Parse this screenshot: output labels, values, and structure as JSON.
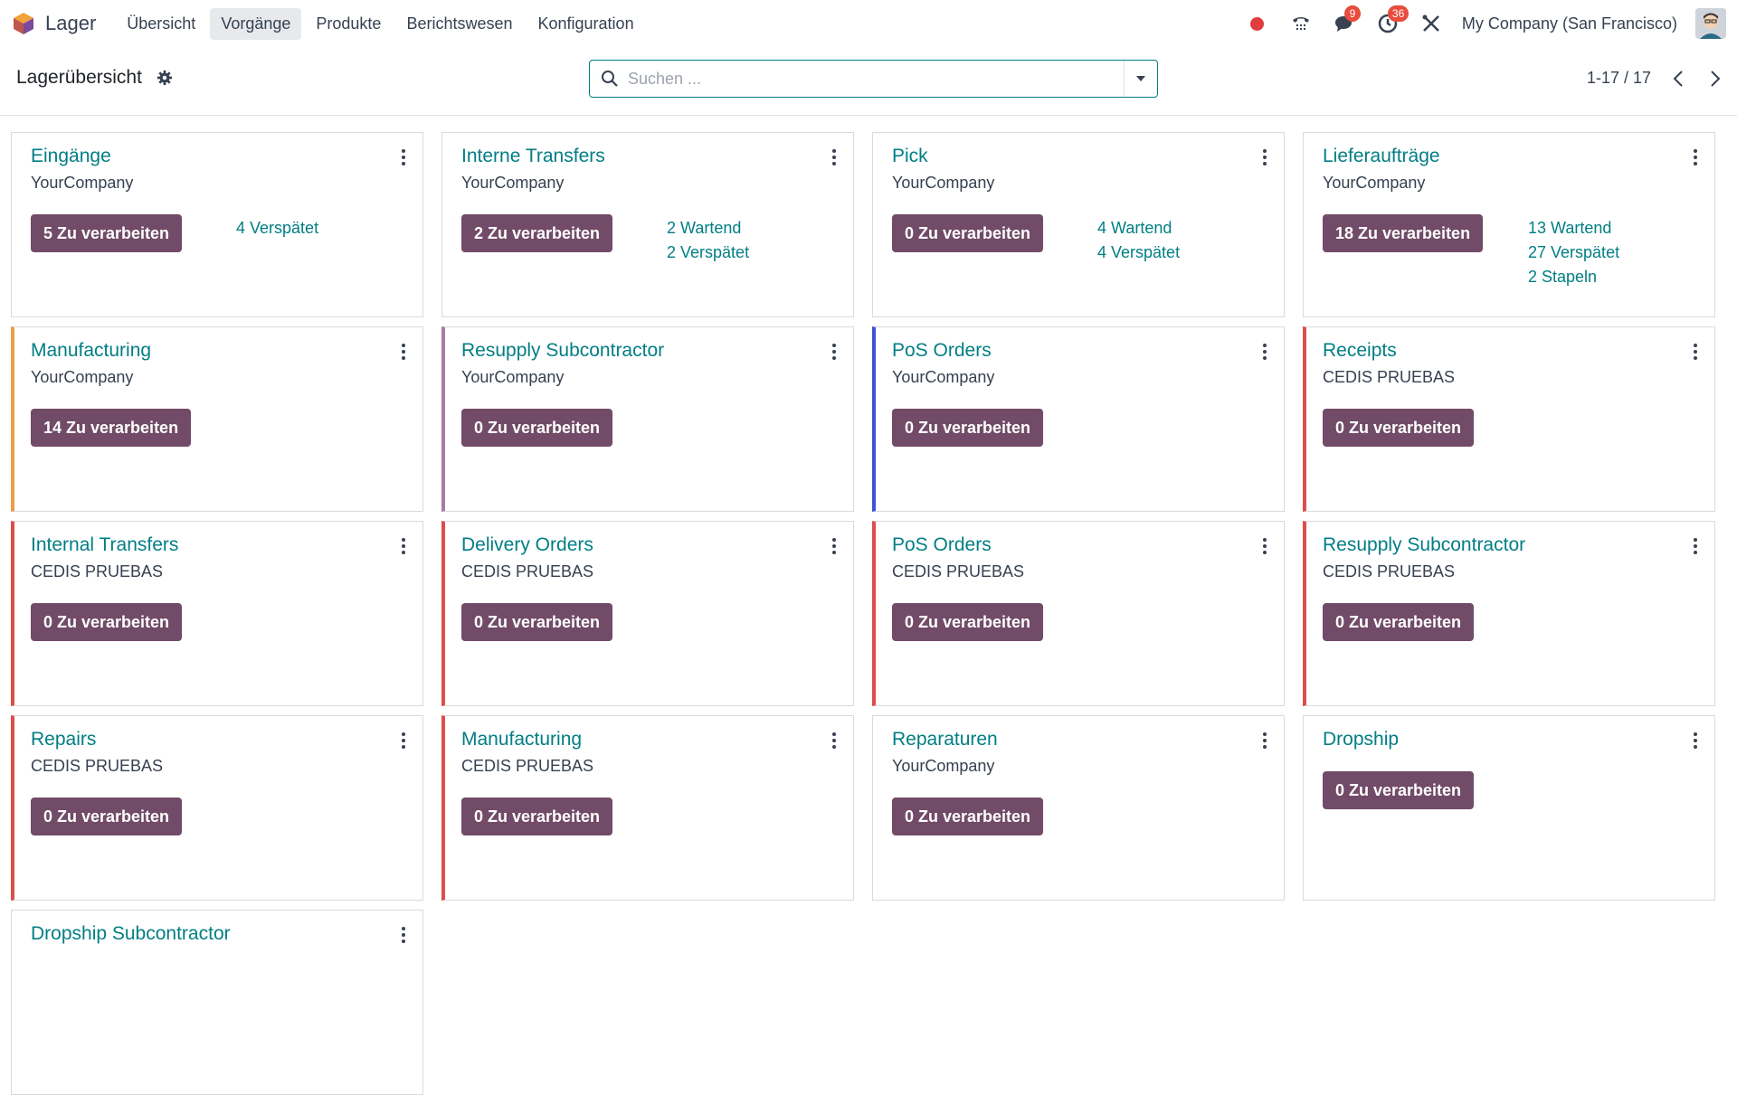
{
  "navbar": {
    "app_name": "Lager",
    "menu": [
      "Übersicht",
      "Vorgänge",
      "Produkte",
      "Berichtswesen",
      "Konfiguration"
    ],
    "active_menu": "Vorgänge",
    "messages_badge": "9",
    "activities_badge": "36",
    "company": "My Company (San Francisco)"
  },
  "control": {
    "title": "Lagerübersicht",
    "search_placeholder": "Suchen ...",
    "pager": "1-17 / 17"
  },
  "colors": {
    "primary": "#714b67",
    "link": "#017e84",
    "orange": "#e8a04c",
    "purple": "#a77ca5",
    "blue": "#3f51d6",
    "red": "#e04c4c"
  },
  "cards": [
    {
      "title": "Eingänge",
      "subtitle": "YourCompany",
      "button": "5 Zu verarbeiten",
      "stats": [
        "4 Verspätet"
      ],
      "accent": ""
    },
    {
      "title": "Interne Transfers",
      "subtitle": "YourCompany",
      "button": "2 Zu verarbeiten",
      "stats": [
        "2 Wartend",
        "2 Verspätet"
      ],
      "accent": ""
    },
    {
      "title": "Pick",
      "subtitle": "YourCompany",
      "button": "0 Zu verarbeiten",
      "stats": [
        "4 Wartend",
        "4 Verspätet"
      ],
      "accent": ""
    },
    {
      "title": "Lieferaufträge",
      "subtitle": "YourCompany",
      "button": "18 Zu verarbeiten",
      "stats": [
        "13 Wartend",
        "27 Verspätet",
        "2 Stapeln"
      ],
      "accent": ""
    },
    {
      "title": "Manufacturing",
      "subtitle": "YourCompany",
      "button": "14 Zu verarbeiten",
      "stats": [],
      "accent": "orange"
    },
    {
      "title": "Resupply Subcontractor",
      "subtitle": "YourCompany",
      "button": "0 Zu verarbeiten",
      "stats": [],
      "accent": "purple"
    },
    {
      "title": "PoS Orders",
      "subtitle": "YourCompany",
      "button": "0 Zu verarbeiten",
      "stats": [],
      "accent": "blue"
    },
    {
      "title": "Receipts",
      "subtitle": "CEDIS PRUEBAS",
      "button": "0 Zu verarbeiten",
      "stats": [],
      "accent": "red"
    },
    {
      "title": "Internal Transfers",
      "subtitle": "CEDIS PRUEBAS",
      "button": "0 Zu verarbeiten",
      "stats": [],
      "accent": "red"
    },
    {
      "title": "Delivery Orders",
      "subtitle": "CEDIS PRUEBAS",
      "button": "0 Zu verarbeiten",
      "stats": [],
      "accent": "red"
    },
    {
      "title": "PoS Orders",
      "subtitle": "CEDIS PRUEBAS",
      "button": "0 Zu verarbeiten",
      "stats": [],
      "accent": "red"
    },
    {
      "title": "Resupply Subcontractor",
      "subtitle": "CEDIS PRUEBAS",
      "button": "0 Zu verarbeiten",
      "stats": [],
      "accent": "red"
    },
    {
      "title": "Repairs",
      "subtitle": "CEDIS PRUEBAS",
      "button": "0 Zu verarbeiten",
      "stats": [],
      "accent": "red"
    },
    {
      "title": "Manufacturing",
      "subtitle": "CEDIS PRUEBAS",
      "button": "0 Zu verarbeiten",
      "stats": [],
      "accent": "red"
    },
    {
      "title": "Reparaturen",
      "subtitle": "YourCompany",
      "button": "0 Zu verarbeiten",
      "stats": [],
      "accent": ""
    },
    {
      "title": "Dropship",
      "subtitle": "",
      "button": "0 Zu verarbeiten",
      "stats": [],
      "accent": ""
    },
    {
      "title": "Dropship Subcontractor",
      "subtitle": "",
      "button": "",
      "stats": [],
      "accent": ""
    }
  ]
}
